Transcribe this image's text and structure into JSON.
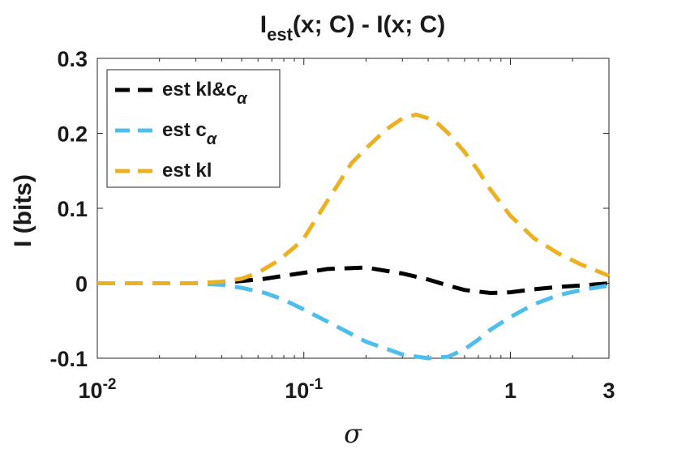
{
  "chart_data": {
    "type": "line",
    "title": {
      "main": "I",
      "sub": "est",
      "rest": "(x; C) - I(x; C)"
    },
    "xlabel": "σ",
    "ylabel": "I (bits)",
    "xscale": "log",
    "xlim": [
      0.01,
      3
    ],
    "ylim": [
      -0.1,
      0.3
    ],
    "xticks": [
      {
        "value": 0.01,
        "base": "10",
        "exp": "-2"
      },
      {
        "value": 0.1,
        "base": "10",
        "exp": "-1"
      },
      {
        "value": 1,
        "base": "1",
        "exp": ""
      },
      {
        "value": 3,
        "base": "3",
        "exp": ""
      }
    ],
    "yticks": [
      {
        "value": -0.1,
        "label": "-0.1"
      },
      {
        "value": 0,
        "label": "0"
      },
      {
        "value": 0.1,
        "label": "0.1"
      },
      {
        "value": 0.2,
        "label": "0.2"
      },
      {
        "value": 0.3,
        "label": "0.3"
      }
    ],
    "grid": false,
    "legend_position": "top-left",
    "series": [
      {
        "name": "est kl&c",
        "name_sub": "α",
        "color": "#000000",
        "x": [
          0.01,
          0.02,
          0.03,
          0.04,
          0.05,
          0.065,
          0.08,
          0.1,
          0.13,
          0.2,
          0.3,
          0.4,
          0.5,
          0.6,
          0.8,
          1.0,
          1.3,
          1.7,
          2.2,
          3.0
        ],
        "y": [
          0,
          0,
          0,
          0.001,
          0.003,
          0.006,
          0.01,
          0.014,
          0.019,
          0.021,
          0.013,
          0.005,
          -0.003,
          -0.009,
          -0.013,
          -0.012,
          -0.008,
          -0.005,
          -0.003,
          0
        ]
      },
      {
        "name": "est c",
        "name_sub": "α",
        "color": "#4DBEEE",
        "x": [
          0.01,
          0.02,
          0.03,
          0.04,
          0.05,
          0.065,
          0.08,
          0.1,
          0.15,
          0.2,
          0.3,
          0.4,
          0.5,
          0.6,
          0.7,
          0.8,
          1.0,
          1.3,
          1.7,
          2.2,
          3.0
        ],
        "y": [
          0,
          0,
          0,
          -0.002,
          -0.006,
          -0.013,
          -0.022,
          -0.035,
          -0.06,
          -0.078,
          -0.095,
          -0.1,
          -0.098,
          -0.088,
          -0.075,
          -0.062,
          -0.045,
          -0.028,
          -0.016,
          -0.009,
          -0.003
        ]
      },
      {
        "name": "est kl",
        "name_sub": "",
        "color": "#EDB120",
        "x": [
          0.01,
          0.02,
          0.03,
          0.04,
          0.05,
          0.06,
          0.075,
          0.09,
          0.1,
          0.13,
          0.17,
          0.2,
          0.25,
          0.3,
          0.35,
          0.4,
          0.45,
          0.5,
          0.6,
          0.7,
          0.8,
          1.0,
          1.3,
          1.7,
          2.2,
          3.0
        ],
        "y": [
          0,
          0,
          0,
          0.002,
          0.006,
          0.014,
          0.03,
          0.048,
          0.06,
          0.11,
          0.16,
          0.18,
          0.205,
          0.22,
          0.225,
          0.22,
          0.212,
          0.2,
          0.175,
          0.15,
          0.125,
          0.09,
          0.06,
          0.04,
          0.025,
          0.01
        ]
      }
    ]
  }
}
